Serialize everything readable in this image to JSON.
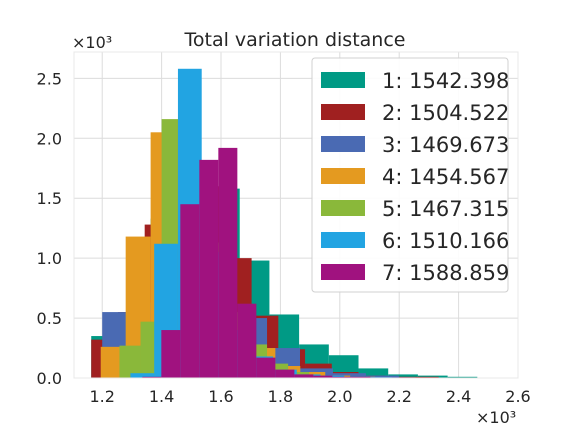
{
  "chart_data": {
    "type": "bar",
    "subtype": "histogram",
    "title": "Total variation distance",
    "xlabel": "",
    "ylabel": "",
    "x_scale_label": "×10³",
    "y_scale_label": "×10³",
    "xlim": [
      1.105,
      2.6
    ],
    "ylim": [
      0,
      2.72
    ],
    "x_ticks": [
      1.2,
      1.4,
      1.6,
      1.8,
      2.0,
      2.2,
      2.4,
      2.6
    ],
    "x_tick_labels": [
      "1.2",
      "1.4",
      "1.6",
      "1.8",
      "2.0",
      "2.2",
      "2.4",
      "2.6"
    ],
    "y_ticks": [
      0.0,
      0.5,
      1.0,
      1.5,
      2.0,
      2.5
    ],
    "y_tick_labels": [
      "0.0",
      "0.5",
      "1.0",
      "1.5",
      "2.0",
      "2.5"
    ],
    "grid": true,
    "legend_position": "top-right",
    "series": [
      {
        "name": "1: 1542.398",
        "color": "#009a85",
        "bin_edges": [
          1.163,
          1.263,
          1.363,
          1.463,
          1.563,
          1.663,
          1.763,
          1.863,
          1.963,
          2.063,
          2.163,
          2.263,
          2.363,
          2.463
        ],
        "counts": [
          0.35,
          0.55,
          1.33,
          1.55,
          1.58,
          0.98,
          0.53,
          0.28,
          0.19,
          0.08,
          0.03,
          0.02,
          0.01
        ]
      },
      {
        "name": "2: 1504.522",
        "color": "#a02020",
        "bin_edges": [
          1.163,
          1.253,
          1.343,
          1.433,
          1.523,
          1.613,
          1.703,
          1.793,
          1.883,
          1.973,
          2.063,
          2.153,
          2.243,
          2.333
        ],
        "counts": [
          0.32,
          0.55,
          1.28,
          1.55,
          1.6,
          1.0,
          0.52,
          0.24,
          0.12,
          0.05,
          0.02,
          0.01,
          0.01
        ]
      },
      {
        "name": "3: 1469.673",
        "color": "#4a6ab3",
        "bin_edges": [
          1.2,
          1.311,
          1.422,
          1.533,
          1.644,
          1.755,
          1.866,
          1.977,
          2.088,
          2.199
        ],
        "counts": [
          0.55,
          0.63,
          0.88,
          0.95,
          0.5,
          0.25,
          0.08,
          0.04,
          0.02
        ]
      },
      {
        "name": "4: 1454.567",
        "color": "#e49a20",
        "bin_edges": [
          1.195,
          1.279,
          1.363,
          1.447,
          1.531,
          1.615,
          1.699,
          1.783,
          1.867,
          1.951,
          2.035,
          2.119
        ],
        "counts": [
          0.26,
          1.18,
          2.05,
          1.55,
          0.7,
          0.5,
          0.25,
          0.1,
          0.05,
          0.02,
          0.01
        ]
      },
      {
        "name": "5: 1467.315",
        "color": "#8ab83a",
        "bin_edges": [
          1.258,
          1.329,
          1.4,
          1.471,
          1.542,
          1.613,
          1.684,
          1.755,
          1.826,
          1.897,
          1.968
        ],
        "counts": [
          0.27,
          0.47,
          2.16,
          1.72,
          1.13,
          0.55,
          0.28,
          0.12,
          0.05,
          0.02
        ]
      },
      {
        "name": "6: 1510.166",
        "color": "#22a4e2",
        "bin_edges": [
          1.295,
          1.375,
          1.455,
          1.535,
          1.615,
          1.695,
          1.775,
          1.855,
          1.935,
          2.015,
          2.095,
          2.175,
          2.255,
          2.335,
          2.415,
          2.495,
          2.575
        ],
        "counts": [
          0.04,
          1.12,
          2.58,
          1.05,
          0.4,
          0.18,
          0.07,
          0.03,
          0.02,
          0.01,
          0.008,
          0.005,
          0.004,
          0.003,
          0.002,
          0.001
        ]
      },
      {
        "name": "7: 1588.859",
        "color": "#a0127f",
        "bin_edges": [
          1.335,
          1.399,
          1.463,
          1.527,
          1.591,
          1.655,
          1.719,
          1.783,
          1.847,
          1.911,
          1.975,
          2.039,
          2.103,
          2.167,
          2.231,
          2.295,
          2.359,
          2.423
        ],
        "counts": [
          0.01,
          0.4,
          1.45,
          1.82,
          1.92,
          0.62,
          0.17,
          0.07,
          0.03,
          0.02,
          0.01,
          0.01,
          0.005,
          0.005,
          0.003,
          0.002,
          0.001
        ]
      }
    ]
  }
}
